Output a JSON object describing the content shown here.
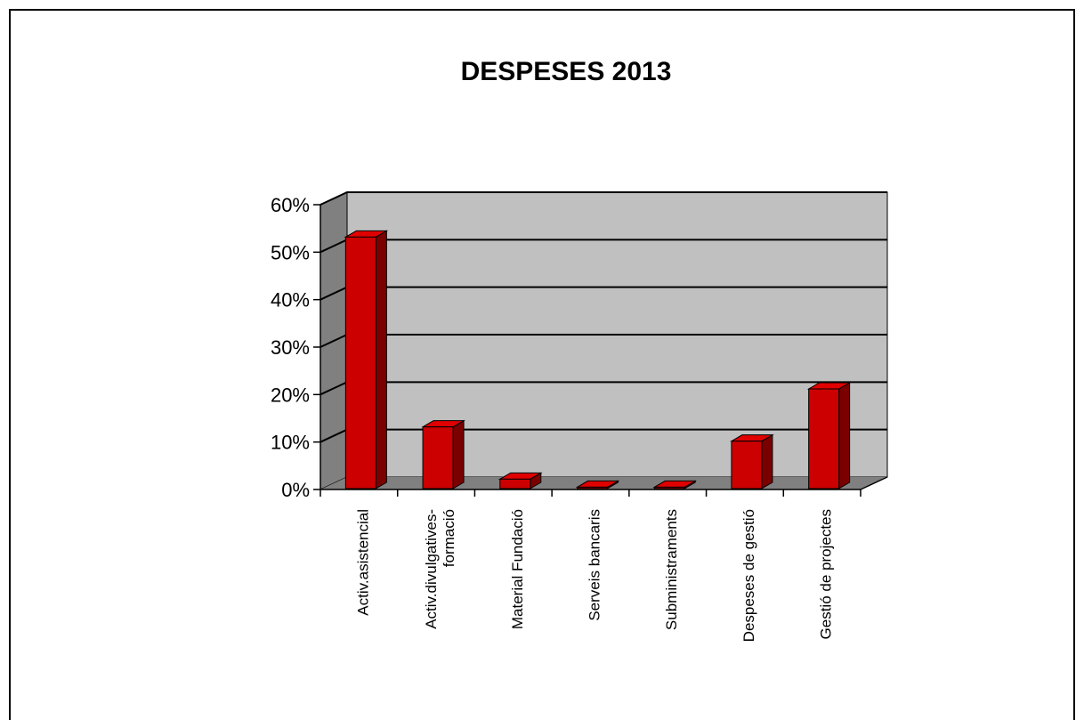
{
  "chart_data": {
    "type": "bar",
    "title": "DESPESES 2013",
    "xlabel": "",
    "ylabel": "",
    "ylim": [
      0,
      0.6
    ],
    "yticks": [
      "0%",
      "10%",
      "20%",
      "30%",
      "40%",
      "50%",
      "60%"
    ],
    "categories": [
      [
        "Activ.asistencial"
      ],
      [
        "Activ.divulgatives-",
        "formació"
      ],
      [
        "Material Fundació"
      ],
      [
        "Serveis bancaris"
      ],
      [
        "Subministraments"
      ],
      [
        "Despeses de gestió"
      ],
      [
        "Gestió de projectes"
      ]
    ],
    "values": [
      0.53,
      0.13,
      0.02,
      0.003,
      0.003,
      0.1,
      0.21
    ],
    "grid": true,
    "three_d": true,
    "colors": {
      "bar_front": "#cc0000",
      "bar_top": "#e00000",
      "bar_side": "#7a0000",
      "wall_back": "#c0c0c0",
      "wall_side": "#808080",
      "floor": "#808080",
      "gridline": "#000000"
    }
  }
}
